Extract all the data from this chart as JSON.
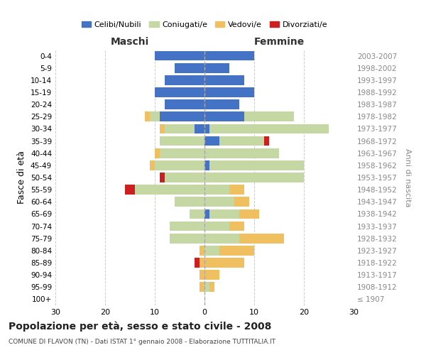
{
  "age_groups": [
    "100+",
    "95-99",
    "90-94",
    "85-89",
    "80-84",
    "75-79",
    "70-74",
    "65-69",
    "60-64",
    "55-59",
    "50-54",
    "45-49",
    "40-44",
    "35-39",
    "30-34",
    "25-29",
    "20-24",
    "15-19",
    "10-14",
    "5-9",
    "0-4"
  ],
  "birth_years": [
    "≤ 1907",
    "1908-1912",
    "1913-1917",
    "1918-1922",
    "1923-1927",
    "1928-1932",
    "1933-1937",
    "1938-1942",
    "1943-1947",
    "1948-1952",
    "1953-1957",
    "1958-1962",
    "1963-1967",
    "1968-1972",
    "1973-1977",
    "1978-1982",
    "1983-1987",
    "1988-1992",
    "1993-1997",
    "1998-2002",
    "2003-2007"
  ],
  "male": {
    "celibi": [
      0,
      0,
      0,
      0,
      0,
      0,
      0,
      0,
      0,
      0,
      0,
      0,
      0,
      0,
      2,
      9,
      8,
      10,
      8,
      6,
      10
    ],
    "coniugati": [
      0,
      0,
      0,
      0,
      0,
      7,
      7,
      3,
      6,
      14,
      8,
      10,
      9,
      9,
      6,
      2,
      0,
      0,
      0,
      0,
      0
    ],
    "vedovi": [
      0,
      1,
      1,
      1,
      1,
      0,
      0,
      0,
      0,
      0,
      0,
      1,
      1,
      0,
      1,
      1,
      0,
      0,
      0,
      0,
      0
    ],
    "divorziati": [
      0,
      0,
      0,
      1,
      0,
      0,
      0,
      0,
      0,
      2,
      1,
      0,
      0,
      0,
      0,
      0,
      0,
      0,
      0,
      0,
      0
    ]
  },
  "female": {
    "nubili": [
      0,
      0,
      0,
      0,
      0,
      0,
      0,
      1,
      0,
      0,
      0,
      1,
      0,
      3,
      1,
      8,
      7,
      10,
      8,
      5,
      10
    ],
    "coniugate": [
      0,
      1,
      0,
      0,
      3,
      7,
      5,
      6,
      6,
      5,
      20,
      19,
      15,
      9,
      24,
      10,
      0,
      0,
      0,
      0,
      0
    ],
    "vedove": [
      0,
      1,
      3,
      8,
      7,
      9,
      3,
      4,
      3,
      3,
      0,
      0,
      0,
      0,
      0,
      0,
      0,
      0,
      0,
      0,
      0
    ],
    "divorziate": [
      0,
      0,
      0,
      0,
      0,
      0,
      0,
      0,
      0,
      0,
      0,
      0,
      0,
      1,
      0,
      0,
      0,
      0,
      0,
      0,
      0
    ]
  },
  "colors": {
    "celibi_nubili": "#4472c4",
    "coniugati": "#c5d8a4",
    "vedovi": "#f0c060",
    "divorziati": "#cc2020"
  },
  "xlim": [
    -30,
    30
  ],
  "xticks": [
    -30,
    -20,
    -10,
    0,
    10,
    20,
    30
  ],
  "xticklabels": [
    "30",
    "20",
    "10",
    "0",
    "10",
    "20",
    "30"
  ],
  "title": "Popolazione per età, sesso e stato civile - 2008",
  "subtitle": "COMUNE DI FLAVON (TN) - Dati ISTAT 1° gennaio 2008 - Elaborazione TUTTITALIA.IT",
  "ylabel": "Fasce di età",
  "ylabel2": "Anni di nascita",
  "maschi_label": "Maschi",
  "femmine_label": "Femmine",
  "legend_labels": [
    "Celibi/Nubili",
    "Coniugati/e",
    "Vedovi/e",
    "Divorziati/e"
  ],
  "bg_color": "#ffffff",
  "grid_color": "#cccccc",
  "bar_height": 0.8
}
